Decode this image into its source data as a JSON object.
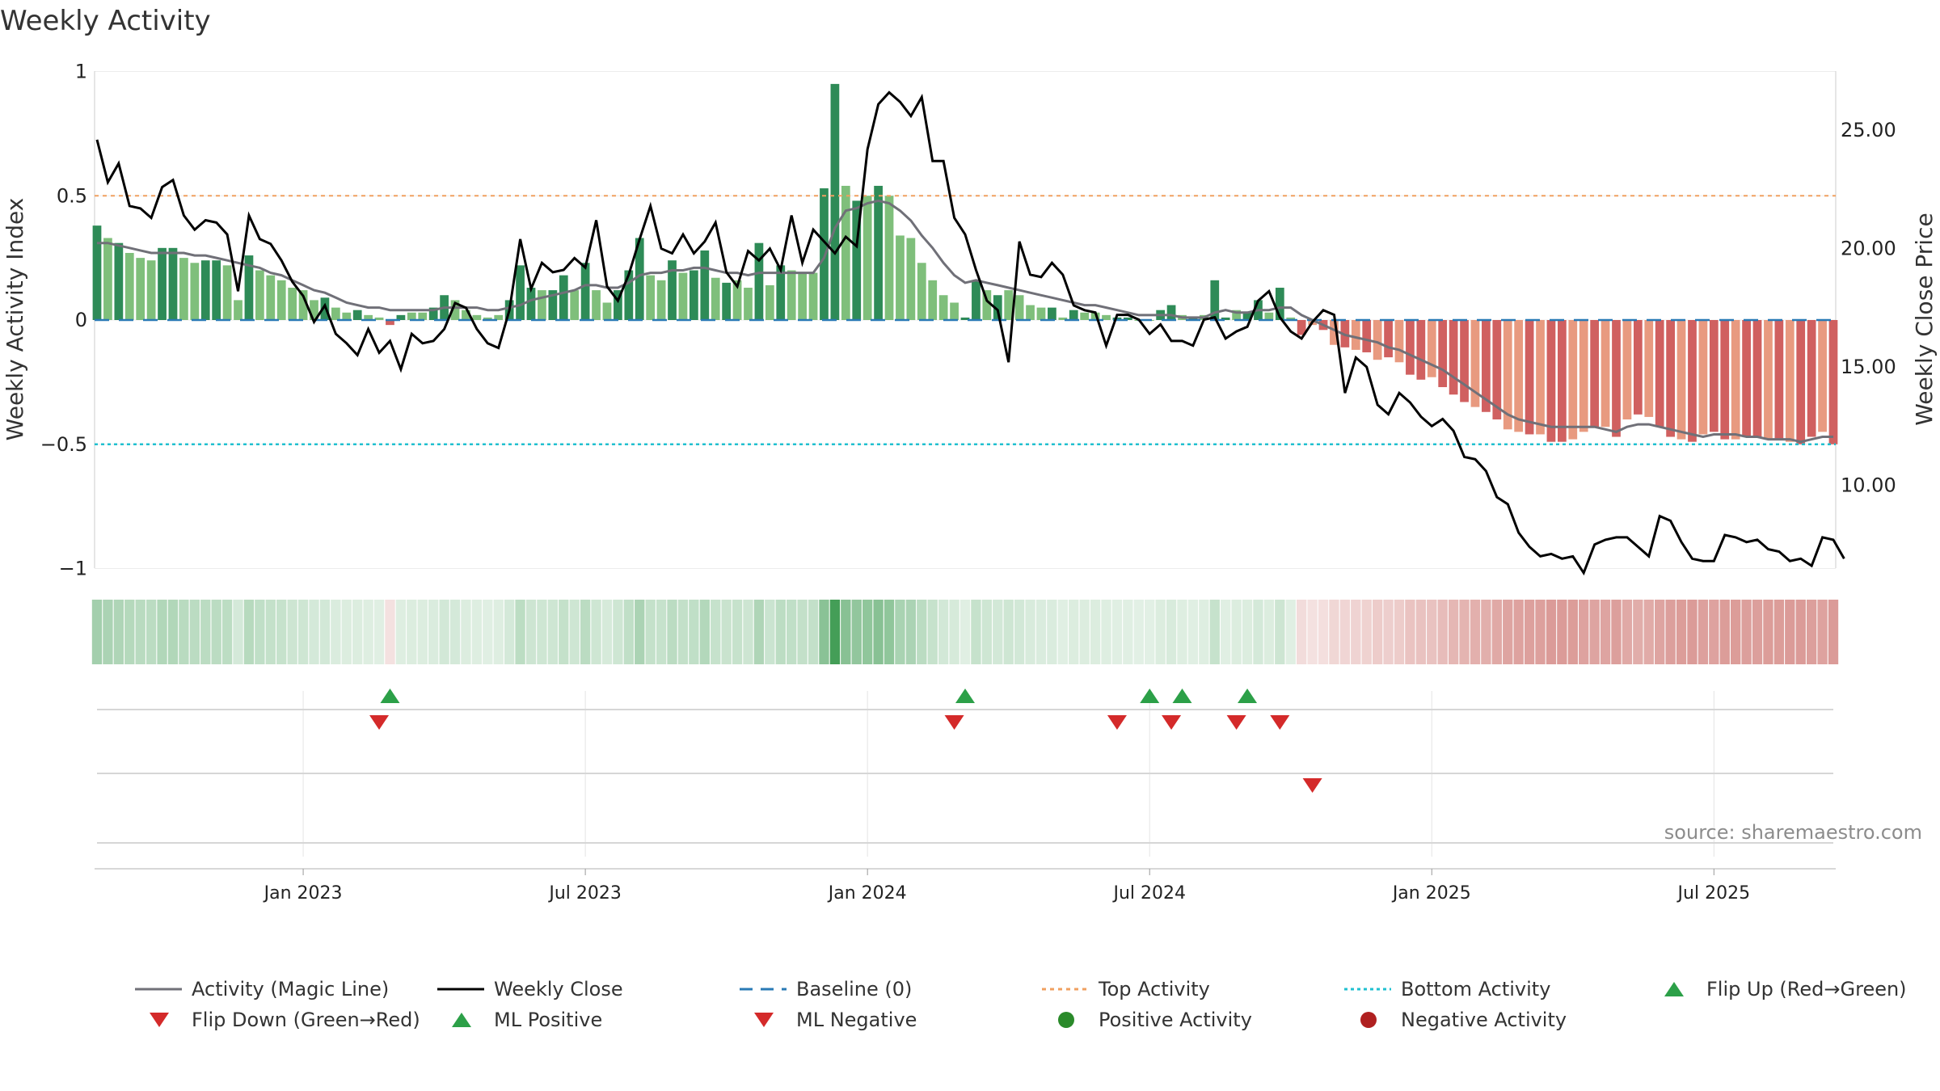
{
  "chart_data": {
    "type": "bar",
    "title": "Weekly Activity",
    "ylabel_left": "Weekly Activity Index",
    "ylabel_right": "Weekly Close Price",
    "ylim_left": [
      -1,
      1
    ],
    "ylim_right": [
      6.5,
      27.5
    ],
    "left_ticks": [
      {
        "v": 1,
        "label": "1"
      },
      {
        "v": 0.5,
        "label": "0.5"
      },
      {
        "v": 0,
        "label": "0"
      },
      {
        "v": -0.5,
        "label": "−0.5"
      },
      {
        "v": -1,
        "label": "−1"
      }
    ],
    "right_ticks": [
      {
        "v": 25,
        "label": "25.00"
      },
      {
        "v": 20,
        "label": "20.00"
      },
      {
        "v": 15,
        "label": "15.00"
      },
      {
        "v": 10,
        "label": "10.00"
      }
    ],
    "x_ticks": [
      "Jan 2023",
      "Jul 2023",
      "Jan 2024",
      "Jul 2024",
      "Jan 2025",
      "Jul 2025"
    ],
    "x_tick_weeks": [
      19,
      45,
      71,
      97,
      123,
      149
    ],
    "top_level": 0.5,
    "bottom_level": -0.5,
    "activity": [
      0.38,
      0.33,
      0.31,
      0.27,
      0.25,
      0.24,
      0.29,
      0.29,
      0.25,
      0.23,
      0.24,
      0.24,
      0.22,
      0.08,
      0.26,
      0.2,
      0.18,
      0.16,
      0.13,
      0.12,
      0.08,
      0.09,
      0.05,
      0.03,
      0.04,
      0.02,
      0.01,
      -0.02,
      0.02,
      0.03,
      0.03,
      0.05,
      0.1,
      0.08,
      0.04,
      0.02,
      0.01,
      0.02,
      0.08,
      0.22,
      0.13,
      0.12,
      0.12,
      0.18,
      0.12,
      0.23,
      0.12,
      0.07,
      0.12,
      0.2,
      0.33,
      0.18,
      0.16,
      0.24,
      0.19,
      0.2,
      0.28,
      0.17,
      0.15,
      0.16,
      0.13,
      0.31,
      0.14,
      0.22,
      0.2,
      0.19,
      0.19,
      0.53,
      0.95,
      0.54,
      0.48,
      0.5,
      0.54,
      0.5,
      0.34,
      0.33,
      0.23,
      0.16,
      0.1,
      0.07,
      0.01,
      0.16,
      0.12,
      0.1,
      0.12,
      0.1,
      0.06,
      0.05,
      0.05,
      0.01,
      0.04,
      0.03,
      0.03,
      0.02,
      0.01,
      0.01,
      0.0,
      0.0,
      0.04,
      0.06,
      0.02,
      0.01,
      0.02,
      0.16,
      0.01,
      0.04,
      0.03,
      0.08,
      0.03,
      0.13,
      0.01,
      -0.06,
      -0.02,
      -0.04,
      -0.1,
      -0.11,
      -0.12,
      -0.13,
      -0.16,
      -0.15,
      -0.17,
      -0.22,
      -0.24,
      -0.23,
      -0.27,
      -0.3,
      -0.33,
      -0.35,
      -0.37,
      -0.4,
      -0.44,
      -0.45,
      -0.46,
      -0.46,
      -0.49,
      -0.49,
      -0.48,
      -0.45,
      -0.43,
      -0.43,
      -0.47,
      -0.4,
      -0.38,
      -0.39,
      -0.43,
      -0.47,
      -0.48,
      -0.49,
      -0.46,
      -0.45,
      -0.48,
      -0.48,
      -0.47,
      -0.47,
      -0.48,
      -0.48,
      -0.49,
      -0.5,
      -0.47,
      -0.45,
      -0.5
    ],
    "activity_strong": [
      1,
      0,
      1,
      0,
      0,
      0,
      1,
      1,
      0,
      0,
      1,
      1,
      0,
      0,
      1,
      0,
      0,
      0,
      0,
      0,
      0,
      1,
      0,
      0,
      1,
      0,
      0,
      1,
      1,
      0,
      0,
      1,
      1,
      0,
      0,
      0,
      0,
      0,
      1,
      1,
      1,
      0,
      1,
      1,
      0,
      1,
      0,
      0,
      1,
      1,
      1,
      0,
      0,
      1,
      0,
      1,
      1,
      0,
      1,
      0,
      0,
      1,
      0,
      1,
      0,
      0,
      0,
      1,
      1,
      0,
      1,
      0,
      1,
      0,
      0,
      0,
      0,
      0,
      0,
      0,
      1,
      1,
      0,
      1,
      0,
      0,
      0,
      0,
      1,
      0,
      1,
      0,
      0,
      0,
      1,
      1,
      0,
      0,
      1,
      1,
      0,
      1,
      0,
      1,
      1,
      0,
      1,
      1,
      0,
      1,
      0,
      1,
      0,
      1,
      0,
      1,
      0,
      1,
      0,
      1,
      0,
      1,
      1,
      0,
      1,
      1,
      1,
      0,
      1,
      1,
      0,
      0,
      1,
      0,
      1,
      1,
      0,
      0,
      1,
      0,
      1,
      0,
      1,
      0,
      1,
      1,
      0,
      1,
      0,
      1,
      1,
      0,
      1,
      1,
      0,
      1,
      0,
      1,
      1,
      0,
      1
    ],
    "magic_line": [
      0.31,
      0.31,
      0.3,
      0.29,
      0.28,
      0.27,
      0.27,
      0.27,
      0.27,
      0.26,
      0.26,
      0.25,
      0.24,
      0.23,
      0.22,
      0.21,
      0.19,
      0.18,
      0.16,
      0.14,
      0.12,
      0.11,
      0.09,
      0.07,
      0.06,
      0.05,
      0.05,
      0.04,
      0.04,
      0.04,
      0.04,
      0.04,
      0.05,
      0.05,
      0.05,
      0.05,
      0.04,
      0.04,
      0.05,
      0.06,
      0.08,
      0.09,
      0.1,
      0.11,
      0.12,
      0.14,
      0.14,
      0.13,
      0.13,
      0.15,
      0.18,
      0.19,
      0.19,
      0.2,
      0.2,
      0.21,
      0.21,
      0.2,
      0.19,
      0.19,
      0.18,
      0.19,
      0.19,
      0.19,
      0.19,
      0.19,
      0.19,
      0.25,
      0.37,
      0.44,
      0.45,
      0.47,
      0.48,
      0.47,
      0.44,
      0.4,
      0.34,
      0.29,
      0.23,
      0.18,
      0.15,
      0.16,
      0.15,
      0.14,
      0.13,
      0.12,
      0.11,
      0.1,
      0.09,
      0.08,
      0.07,
      0.06,
      0.06,
      0.05,
      0.04,
      0.03,
      0.02,
      0.02,
      0.02,
      0.02,
      0.01,
      0.01,
      0.01,
      0.03,
      0.04,
      0.03,
      0.03,
      0.04,
      0.04,
      0.05,
      0.05,
      0.02,
      0.0,
      -0.02,
      -0.04,
      -0.06,
      -0.07,
      -0.08,
      -0.09,
      -0.11,
      -0.12,
      -0.14,
      -0.16,
      -0.18,
      -0.2,
      -0.23,
      -0.26,
      -0.29,
      -0.32,
      -0.35,
      -0.38,
      -0.4,
      -0.41,
      -0.42,
      -0.43,
      -0.43,
      -0.43,
      -0.43,
      -0.43,
      -0.44,
      -0.45,
      -0.43,
      -0.42,
      -0.42,
      -0.43,
      -0.44,
      -0.45,
      -0.46,
      -0.47,
      -0.46,
      -0.46,
      -0.46,
      -0.47,
      -0.47,
      -0.48,
      -0.48,
      -0.48,
      -0.49,
      -0.48,
      -0.47,
      -0.47
    ],
    "close": [
      24.6,
      22.8,
      23.6,
      21.8,
      21.7,
      21.3,
      22.6,
      22.9,
      21.4,
      20.8,
      21.2,
      21.1,
      20.6,
      18.2,
      21.4,
      20.4,
      20.2,
      19.5,
      18.6,
      18.0,
      16.9,
      17.6,
      16.4,
      16.0,
      15.5,
      16.6,
      15.6,
      16.1,
      14.9,
      16.4,
      16.0,
      16.1,
      16.6,
      17.7,
      17.5,
      16.6,
      16.0,
      15.8,
      17.4,
      20.4,
      18.3,
      19.4,
      19.0,
      19.1,
      19.6,
      19.2,
      21.2,
      18.4,
      17.8,
      18.9,
      20.4,
      21.8,
      20.0,
      19.8,
      20.6,
      19.8,
      20.3,
      21.1,
      19.0,
      18.4,
      19.9,
      19.5,
      20.0,
      19.1,
      21.4,
      19.4,
      20.8,
      20.3,
      19.8,
      20.5,
      20.1,
      24.2,
      26.1,
      26.6,
      26.2,
      25.6,
      26.4,
      23.7,
      23.7,
      21.3,
      20.6,
      19.1,
      17.8,
      17.4,
      15.2,
      20.3,
      18.9,
      18.8,
      19.4,
      18.9,
      17.6,
      17.4,
      17.3,
      15.9,
      17.2,
      17.2,
      17.0,
      16.4,
      16.8,
      16.1,
      16.1,
      15.9,
      17.0,
      17.1,
      16.2,
      16.5,
      16.7,
      17.8,
      18.2,
      17.1,
      16.5,
      16.2,
      16.9,
      17.4,
      17.2,
      13.9,
      15.4,
      15.0,
      13.4,
      13.0,
      13.9,
      13.5,
      12.9,
      12.5,
      12.8,
      12.3,
      11.2,
      11.1,
      10.6,
      9.5,
      9.2,
      8.0,
      7.4,
      7.0,
      7.1,
      6.9,
      7.0,
      6.3,
      7.5,
      7.7,
      7.8,
      7.8,
      7.4,
      7.0,
      8.7,
      8.5,
      7.6,
      6.9,
      6.8,
      6.8,
      7.9,
      7.8,
      7.6,
      7.7,
      7.3,
      7.2,
      6.8,
      6.9,
      6.6,
      7.8,
      7.7,
      6.9
    ],
    "flip_up": [
      27,
      80,
      97,
      100,
      106
    ],
    "flip_down": [
      26,
      79,
      94,
      99,
      105,
      109
    ],
    "ml_negative": [
      112
    ],
    "legend": [
      "Activity (Magic Line)",
      "Weekly Close",
      "Baseline (0)",
      "Top Activity",
      "Bottom Activity",
      "Flip Up (Red→Green)",
      "Flip Down (Green→Red)",
      "ML Positive",
      "ML Negative",
      "Positive Activity",
      "Negative Activity"
    ],
    "source": "source: sharemaestro.com"
  },
  "colors": {
    "pos_strong": "#2e8b57",
    "pos_light": "#7fbf7b",
    "neg_strong": "#d06060",
    "neg_light": "#e89a80",
    "magic_line": "#707078",
    "close": "#000000",
    "baseline": "#2a7ab5",
    "top": "#f0a060",
    "bottom": "#20c0d0",
    "up": "#2ca048",
    "down": "#d42a2a",
    "pos_dot": "#2a8a2a",
    "neg_dot": "#b02020"
  }
}
